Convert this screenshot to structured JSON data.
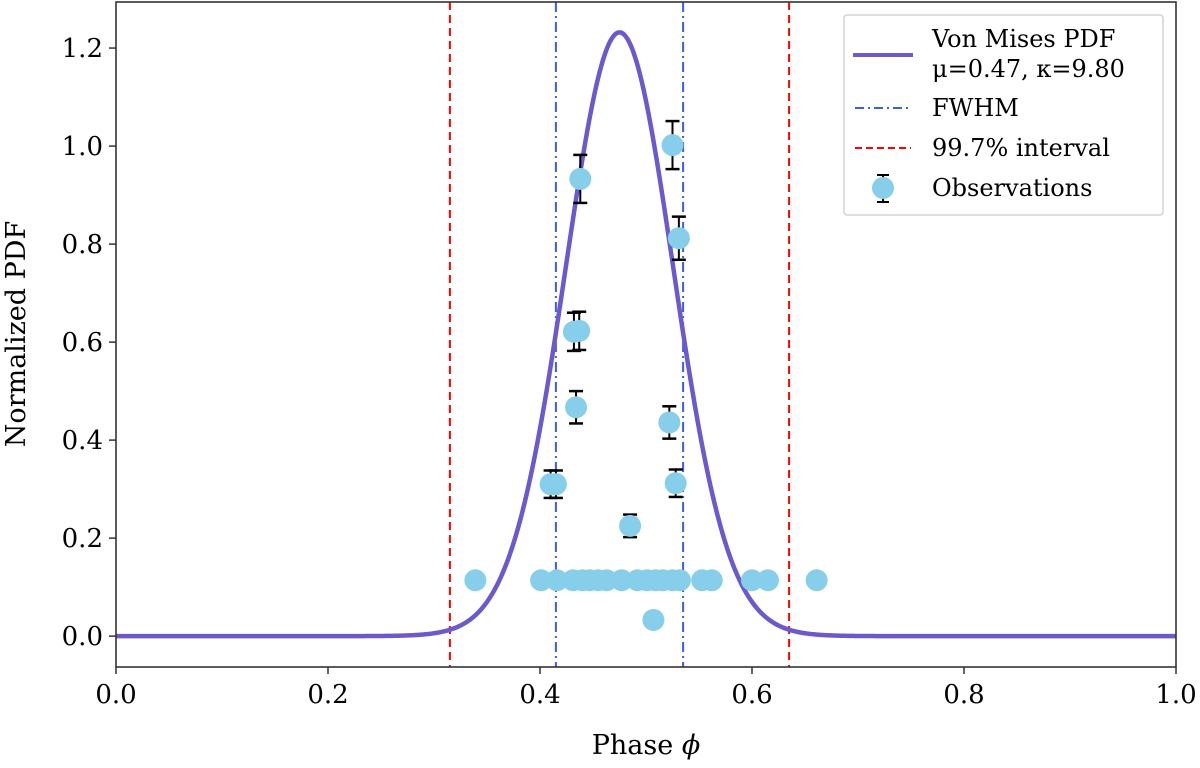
{
  "chart_data": {
    "type": "line",
    "title": "",
    "xlabel": "Phase ",
    "xlabel_symbol": "ϕ",
    "ylabel": "Normalized PDF",
    "xlim": [
      0.0,
      1.0
    ],
    "ylim": [
      -0.063,
      1.294
    ],
    "xticks": [
      "0.0",
      "0.2",
      "0.4",
      "0.6",
      "0.8",
      "1.0"
    ],
    "yticks": [
      "0.0",
      "0.2",
      "0.4",
      "0.6",
      "0.8",
      "1.0",
      "1.2"
    ],
    "grid": false,
    "legend_position": "top-right",
    "curve": {
      "name": "Von Mises PDF",
      "mu": 0.475,
      "kappa": 9.8,
      "peak": 1.232,
      "color": "#6a5acd"
    },
    "fwhm": {
      "x": [
        0.415,
        0.535
      ],
      "color": "#3a5fe0"
    },
    "interval": {
      "x": [
        0.315,
        0.635
      ],
      "color": "#ff0000"
    },
    "observations": {
      "color": "#87ceeb",
      "with_errors": [
        {
          "x": 0.438,
          "y": 0.933,
          "err": 0.049
        },
        {
          "x": 0.525,
          "y": 1.002,
          "err": 0.049
        },
        {
          "x": 0.531,
          "y": 0.812,
          "err": 0.044
        },
        {
          "x": 0.432,
          "y": 0.621,
          "err": 0.039
        },
        {
          "x": 0.437,
          "y": 0.623,
          "err": 0.039
        },
        {
          "x": 0.434,
          "y": 0.467,
          "err": 0.033
        },
        {
          "x": 0.522,
          "y": 0.436,
          "err": 0.033
        },
        {
          "x": 0.41,
          "y": 0.31,
          "err": 0.028
        },
        {
          "x": 0.415,
          "y": 0.31,
          "err": 0.028
        },
        {
          "x": 0.528,
          "y": 0.312,
          "err": 0.028
        },
        {
          "x": 0.485,
          "y": 0.225,
          "err": 0.023
        }
      ],
      "without_errors": [
        {
          "x": 0.339,
          "y": 0.114
        },
        {
          "x": 0.401,
          "y": 0.114
        },
        {
          "x": 0.416,
          "y": 0.114
        },
        {
          "x": 0.431,
          "y": 0.114
        },
        {
          "x": 0.44,
          "y": 0.114
        },
        {
          "x": 0.447,
          "y": 0.114
        },
        {
          "x": 0.455,
          "y": 0.114
        },
        {
          "x": 0.463,
          "y": 0.114
        },
        {
          "x": 0.477,
          "y": 0.114
        },
        {
          "x": 0.492,
          "y": 0.114
        },
        {
          "x": 0.501,
          "y": 0.114
        },
        {
          "x": 0.509,
          "y": 0.114
        },
        {
          "x": 0.516,
          "y": 0.114
        },
        {
          "x": 0.525,
          "y": 0.114
        },
        {
          "x": 0.532,
          "y": 0.114
        },
        {
          "x": 0.553,
          "y": 0.114
        },
        {
          "x": 0.562,
          "y": 0.114
        },
        {
          "x": 0.6,
          "y": 0.114
        },
        {
          "x": 0.615,
          "y": 0.114
        },
        {
          "x": 0.661,
          "y": 0.114
        },
        {
          "x": 0.507,
          "y": 0.033
        }
      ]
    },
    "legend": {
      "entries": [
        {
          "label": "Von Mises PDF",
          "label2": "μ=0.47, κ=9.80"
        },
        {
          "label": "FWHM"
        },
        {
          "label": "99.7% interval"
        },
        {
          "label": "Observations"
        }
      ]
    }
  }
}
